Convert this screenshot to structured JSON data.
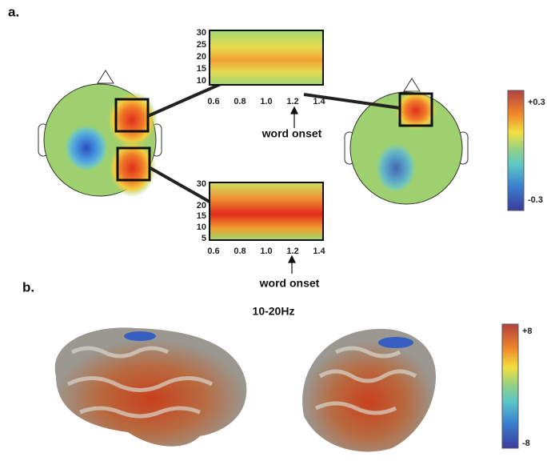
{
  "panel_a": {
    "label": "a.",
    "tf_top": {
      "yticks": [
        "30",
        "25",
        "20",
        "15",
        "10"
      ],
      "xticks": [
        "0.6",
        "0.8",
        "1.0",
        "1.2",
        "1.4"
      ],
      "annotation": "word onset"
    },
    "tf_bottom": {
      "yticks": [
        "30",
        "20",
        "15",
        "10",
        "5"
      ],
      "xticks": [
        "0.6",
        "0.8",
        "1.0",
        "1.2",
        "1.4"
      ],
      "annotation": "word onset"
    },
    "colorbar": {
      "max": "+0.3",
      "min": "-0.3"
    }
  },
  "panel_b": {
    "label": "b.",
    "title": "10-20Hz",
    "colorbar": {
      "max": "+8",
      "min": "-8"
    }
  }
}
